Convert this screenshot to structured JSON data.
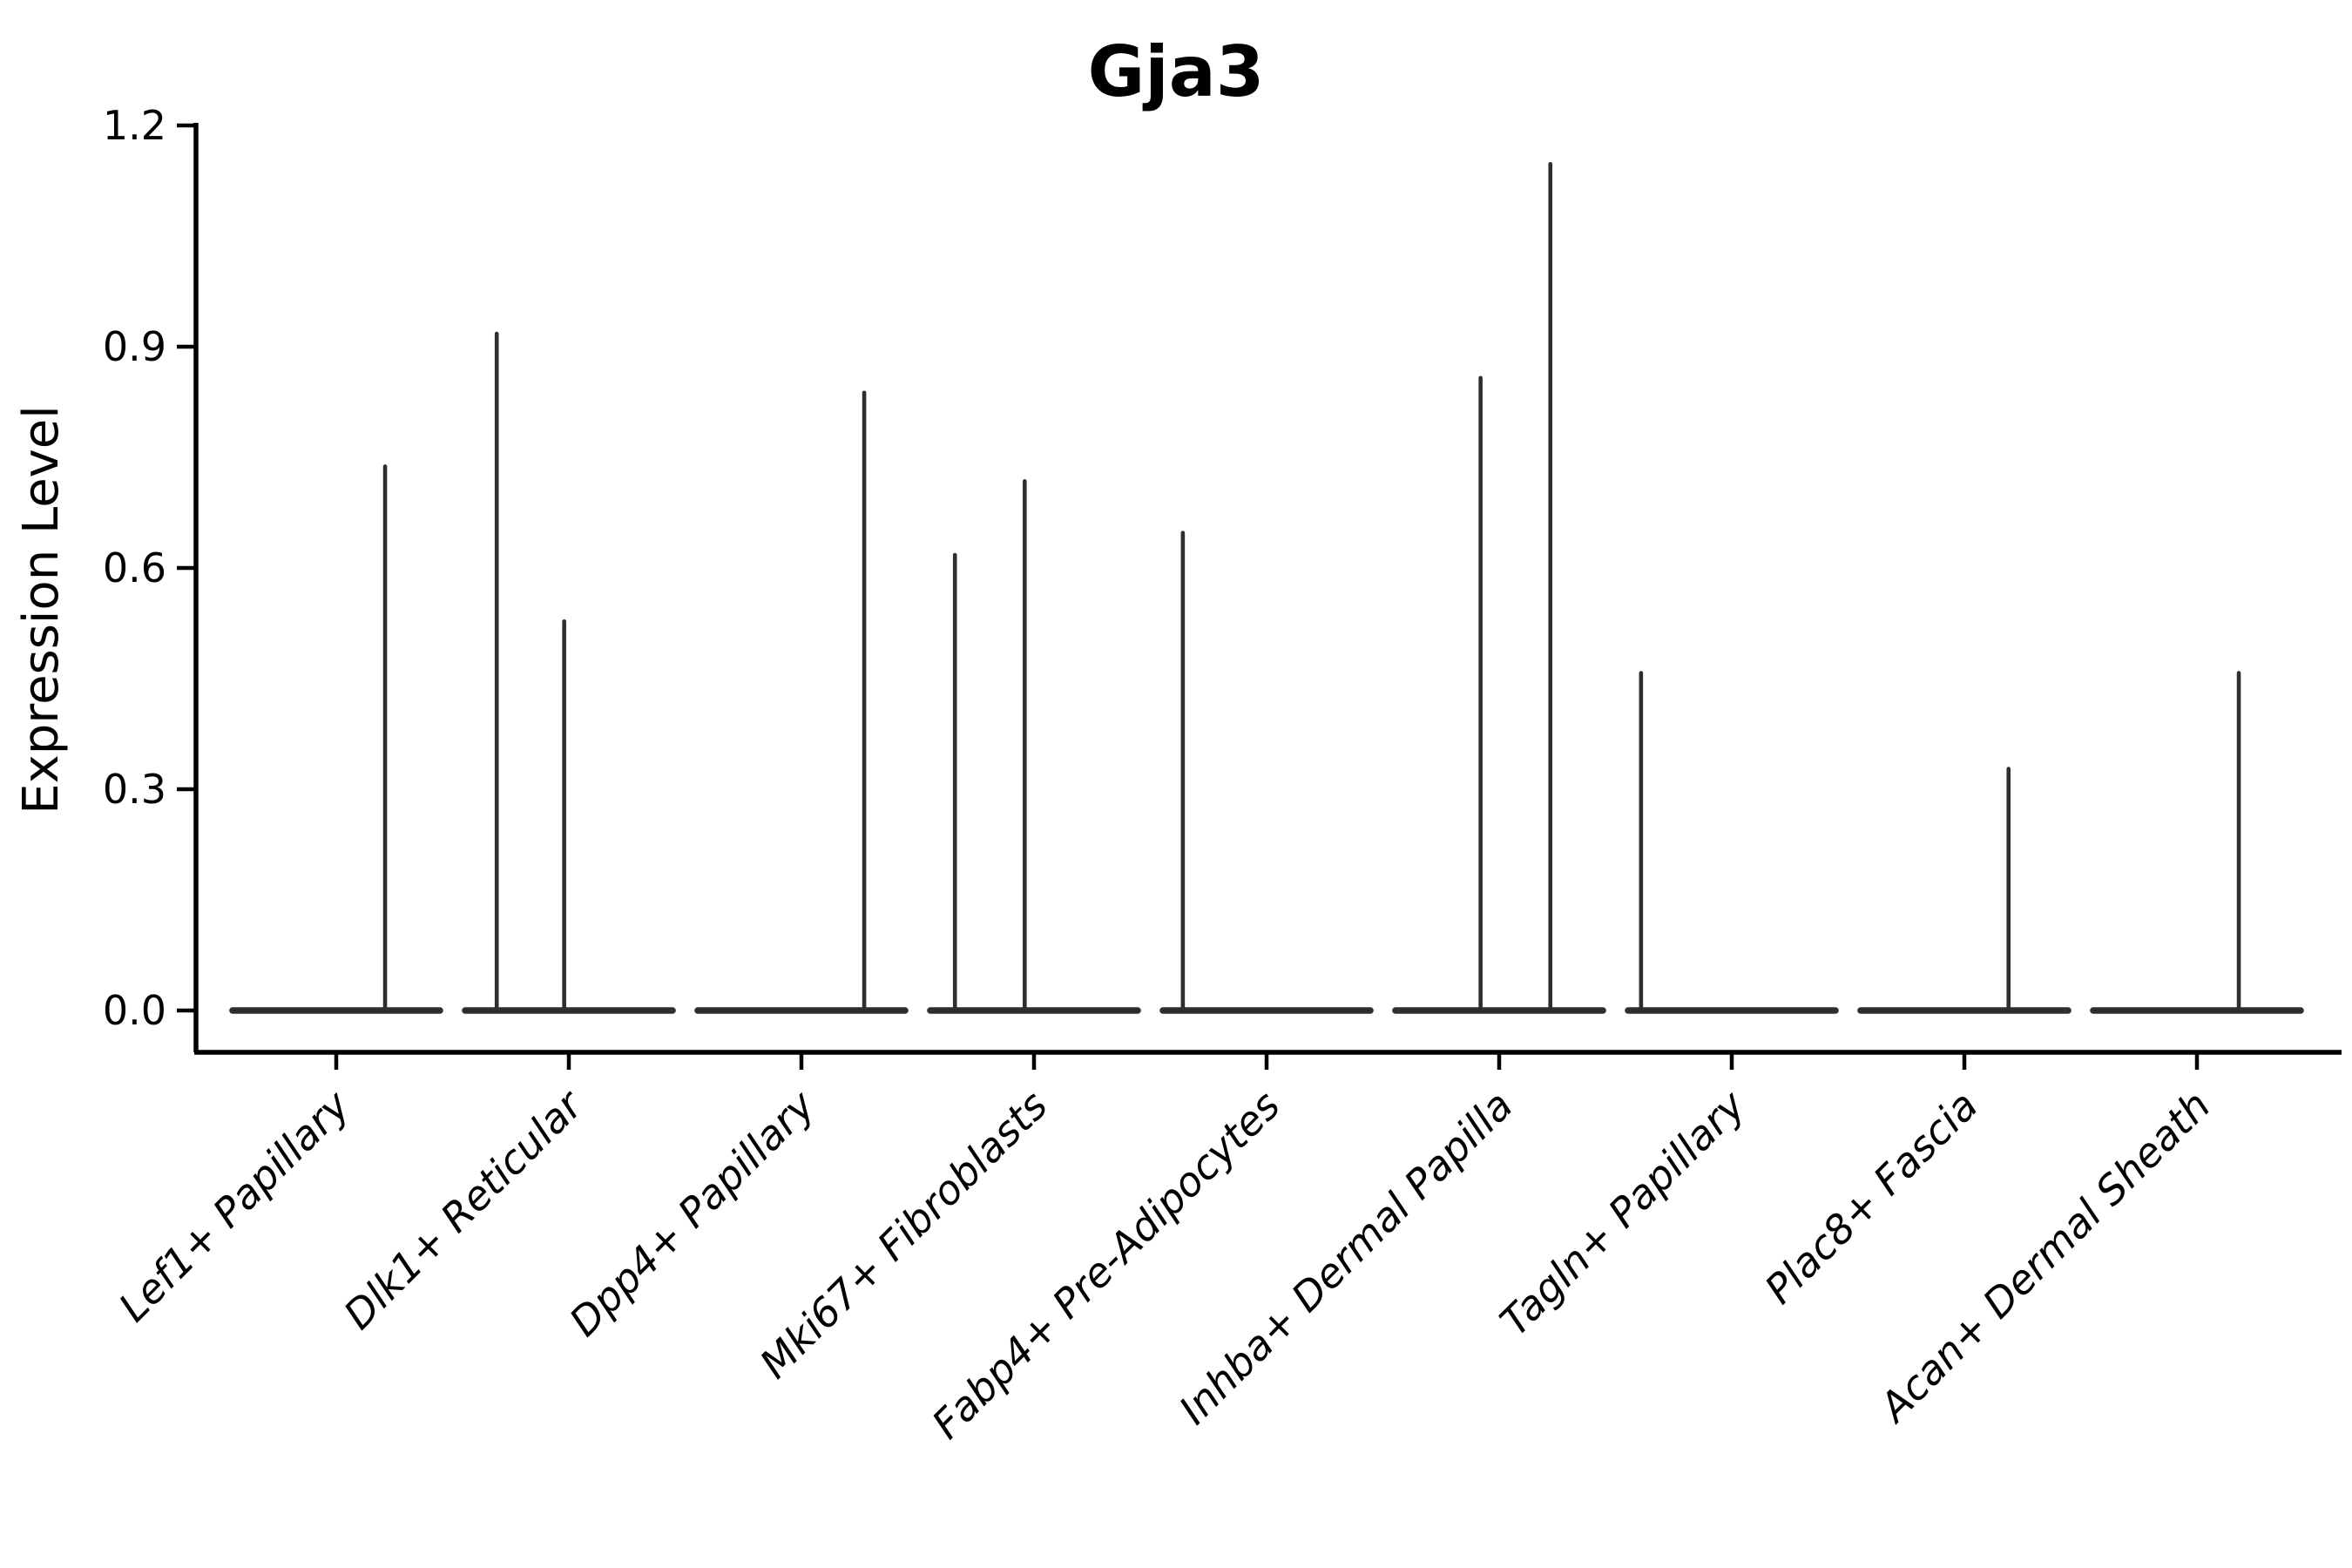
{
  "chart_data": {
    "type": "violin",
    "title": "Gja3",
    "ylabel": "Expression Level",
    "xlabel": "",
    "ylim": [
      0,
      1.2
    ],
    "yticks": [
      0.0,
      0.3,
      0.6,
      0.9,
      1.2
    ],
    "ytick_labels": [
      "0.0",
      "0.3",
      "0.6",
      "0.9",
      "1.2"
    ],
    "grid": "off",
    "legend": "none",
    "categories": [
      "Lef1+ Papillary",
      "Dlk1+ Reticular",
      "Dpp4+ Papillary",
      "Mki67+ Fibroblasts",
      "Fabp4+ Pre-Adipocytes",
      "Inhba+ Dermal Papilla",
      "Tagln+ Papillary",
      "Plac8+ Fascia",
      "Acan+ Dermal Sheath"
    ],
    "violins": [
      {
        "category": "Lef1+ Papillary",
        "base_halfwidth": 0.46,
        "baseline_value": 0.0,
        "spikes": [
          {
            "offset": 0.21,
            "peak": 0.74
          }
        ]
      },
      {
        "category": "Dlk1+ Reticular",
        "base_halfwidth": 0.46,
        "baseline_value": 0.0,
        "spikes": [
          {
            "offset": -0.31,
            "peak": 0.92
          },
          {
            "offset": -0.02,
            "peak": 0.53
          }
        ]
      },
      {
        "category": "Dpp4+ Papillary",
        "base_halfwidth": 0.46,
        "baseline_value": 0.0,
        "spikes": [
          {
            "offset": 0.27,
            "peak": 0.84
          }
        ]
      },
      {
        "category": "Mki67+ Fibroblasts",
        "base_halfwidth": 0.46,
        "baseline_value": 0.0,
        "spikes": [
          {
            "offset": -0.34,
            "peak": 0.62
          },
          {
            "offset": -0.04,
            "peak": 0.72
          }
        ]
      },
      {
        "category": "Fabp4+ Pre-Adipocytes",
        "base_halfwidth": 0.46,
        "baseline_value": 0.0,
        "spikes": [
          {
            "offset": -0.36,
            "peak": 0.65
          }
        ]
      },
      {
        "category": "Inhba+ Dermal Papilla",
        "base_halfwidth": 0.46,
        "baseline_value": 0.0,
        "spikes": [
          {
            "offset": -0.08,
            "peak": 0.86
          },
          {
            "offset": 0.22,
            "peak": 1.15
          }
        ]
      },
      {
        "category": "Tagln+ Papillary",
        "base_halfwidth": 0.46,
        "baseline_value": 0.0,
        "spikes": [
          {
            "offset": -0.39,
            "peak": 0.46
          }
        ]
      },
      {
        "category": "Plac8+ Fascia",
        "base_halfwidth": 0.46,
        "baseline_value": 0.0,
        "spikes": [
          {
            "offset": 0.19,
            "peak": 0.33
          }
        ]
      },
      {
        "category": "Acan+ Dermal Sheath",
        "base_halfwidth": 0.46,
        "baseline_value": 0.0,
        "spikes": [
          {
            "offset": 0.18,
            "peak": 0.46
          }
        ]
      }
    ],
    "colors": {
      "violin": "#2e2e2e",
      "axis": "#000000",
      "text": "#000000",
      "background": "#ffffff"
    }
  }
}
